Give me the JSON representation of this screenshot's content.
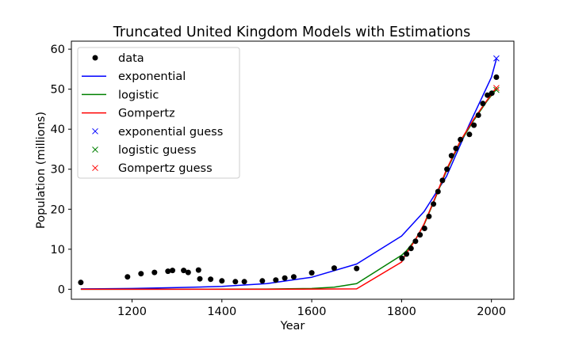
{
  "chart_data": {
    "type": "line",
    "title": "Truncated United Kingdom Models with Estimations",
    "xlabel": "Year",
    "ylabel": "Population (millions)",
    "xlim": [
      1065,
      2050
    ],
    "ylim": [
      -2.5,
      62
    ],
    "xticks": [
      1200,
      1400,
      1600,
      1800,
      2000
    ],
    "yticks": [
      0,
      10,
      20,
      30,
      40,
      50,
      60
    ],
    "grid": false,
    "legend_position": "upper-left",
    "data_points": {
      "name": "data",
      "color": "#000000",
      "x": [
        1086,
        1190,
        1220,
        1250,
        1280,
        1290,
        1315,
        1325,
        1348,
        1351,
        1375,
        1400,
        1430,
        1450,
        1490,
        1520,
        1540,
        1560,
        1600,
        1650,
        1700,
        1801,
        1811,
        1821,
        1831,
        1841,
        1851,
        1861,
        1871,
        1881,
        1891,
        1901,
        1911,
        1921,
        1931,
        1951,
        1961,
        1971,
        1981,
        1991,
        2001,
        2011
      ],
      "y": [
        1.7,
        3.1,
        3.9,
        4.2,
        4.5,
        4.7,
        4.7,
        4.2,
        4.8,
        2.6,
        2.5,
        2.1,
        1.9,
        1.9,
        2.1,
        2.3,
        2.8,
        3.1,
        4.1,
        5.3,
        5.2,
        7.7,
        8.8,
        10.2,
        12.0,
        13.6,
        15.2,
        18.2,
        21.3,
        24.4,
        27.2,
        30.0,
        33.4,
        35.2,
        37.4,
        38.7,
        41.0,
        43.5,
        46.4,
        48.5,
        49.0,
        53.0
      ]
    },
    "series": [
      {
        "name": "exponential",
        "color": "#0000ff",
        "x": [
          1086,
          1200,
          1300,
          1400,
          1500,
          1600,
          1700,
          1800,
          1850,
          1900,
          1950,
          2000,
          2011
        ],
        "y": [
          0.1,
          0.2,
          0.4,
          0.7,
          1.4,
          3.0,
          6.3,
          13.3,
          19.4,
          28.2,
          41.0,
          53.0,
          57.5
        ]
      },
      {
        "name": "logistic",
        "color": "#008000",
        "x": [
          1086,
          1500,
          1600,
          1650,
          1700,
          1800,
          1810,
          1830,
          1850,
          1870,
          1900,
          1930,
          1960,
          1990,
          2011
        ],
        "y": [
          0.0,
          0.05,
          0.2,
          0.5,
          1.4,
          8.5,
          9.5,
          12.3,
          16.1,
          21.4,
          29.6,
          36.6,
          42.1,
          47.0,
          50.0
        ]
      },
      {
        "name": "Gompertz",
        "color": "#ff0000",
        "x": [
          1086,
          1500,
          1700,
          1800,
          1810,
          1830,
          1850,
          1870,
          1900,
          1930,
          1960,
          1990,
          2011
        ],
        "y": [
          0.0,
          0.0,
          0.1,
          6.8,
          8.9,
          12.2,
          16.3,
          21.6,
          29.9,
          36.9,
          42.4,
          47.2,
          50.3
        ]
      }
    ],
    "guesses": [
      {
        "name": "exponential guess",
        "color": "#0000ff",
        "x": [
          2011
        ],
        "y": [
          57.7
        ]
      },
      {
        "name": "logistic guess",
        "color": "#008000",
        "x": [
          2011
        ],
        "y": [
          49.8
        ]
      },
      {
        "name": "Gompertz guess",
        "color": "#ff0000",
        "x": [
          2011
        ],
        "y": [
          50.3
        ]
      }
    ]
  }
}
